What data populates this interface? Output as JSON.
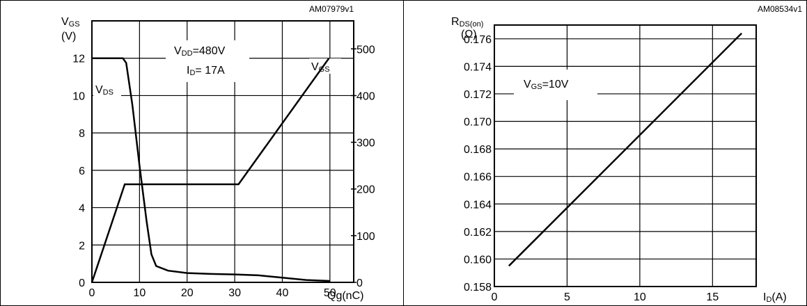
{
  "chart_data": [
    {
      "type": "line",
      "code": "AM07979v1",
      "xlabel": "Qg(nC)",
      "x_ticks": [
        0,
        10,
        20,
        30,
        40,
        50
      ],
      "xlim": [
        0,
        55
      ],
      "left_axis": {
        "label_main": "V",
        "label_sub": "GS",
        "unit": "(V)",
        "ylim": [
          0,
          14
        ],
        "ticks": [
          0,
          2,
          4,
          6,
          8,
          10,
          12
        ]
      },
      "right_axis": {
        "ylim": [
          0,
          560
        ],
        "ticks": [
          0,
          100,
          200,
          300,
          400,
          500
        ]
      },
      "annotations": [
        {
          "main": "V",
          "sub": "DD",
          "rest": "=480V"
        },
        {
          "main": "I",
          "sub": "D",
          "rest": "= 17A"
        }
      ],
      "series": [
        {
          "name": "VGS",
          "label_main": "V",
          "label_sub": "GS",
          "axis": "left",
          "x": [
            0,
            6.9,
            30.8,
            49.8
          ],
          "y": [
            0,
            5.25,
            5.25,
            12
          ]
        },
        {
          "name": "VDS",
          "label_main": "V",
          "label_sub": "DS",
          "axis": "right",
          "x": [
            0,
            6.5,
            7.2,
            8.5,
            10,
            11.5,
            12.5,
            13.5,
            16,
            20,
            25,
            30,
            35,
            40,
            45,
            50
          ],
          "y": [
            480,
            480,
            470,
            380,
            250,
            130,
            60,
            35,
            25,
            20,
            18,
            17,
            15,
            10,
            5,
            3
          ]
        }
      ]
    },
    {
      "type": "line",
      "code": "AM08534v1",
      "xlabel": "ID(A)",
      "xlabel_main": "I",
      "xlabel_sub": "D",
      "xlabel_rest": "(A)",
      "x_ticks": [
        0,
        5,
        10,
        15
      ],
      "xlim": [
        0,
        18
      ],
      "ylabel_main": "R",
      "ylabel_sub": "DS(on)",
      "ylabel_unit": "(Ω)",
      "ylim": [
        0.158,
        0.177
      ],
      "y_ticks": [
        0.158,
        0.16,
        0.162,
        0.164,
        0.166,
        0.168,
        0.17,
        0.172,
        0.174,
        0.176
      ],
      "annotation": {
        "main": "V",
        "sub": "GS",
        "rest": "=10V"
      },
      "series": [
        {
          "name": "RDS(on)",
          "x": [
            1,
            17
          ],
          "y": [
            0.1595,
            0.1764
          ]
        }
      ]
    }
  ]
}
